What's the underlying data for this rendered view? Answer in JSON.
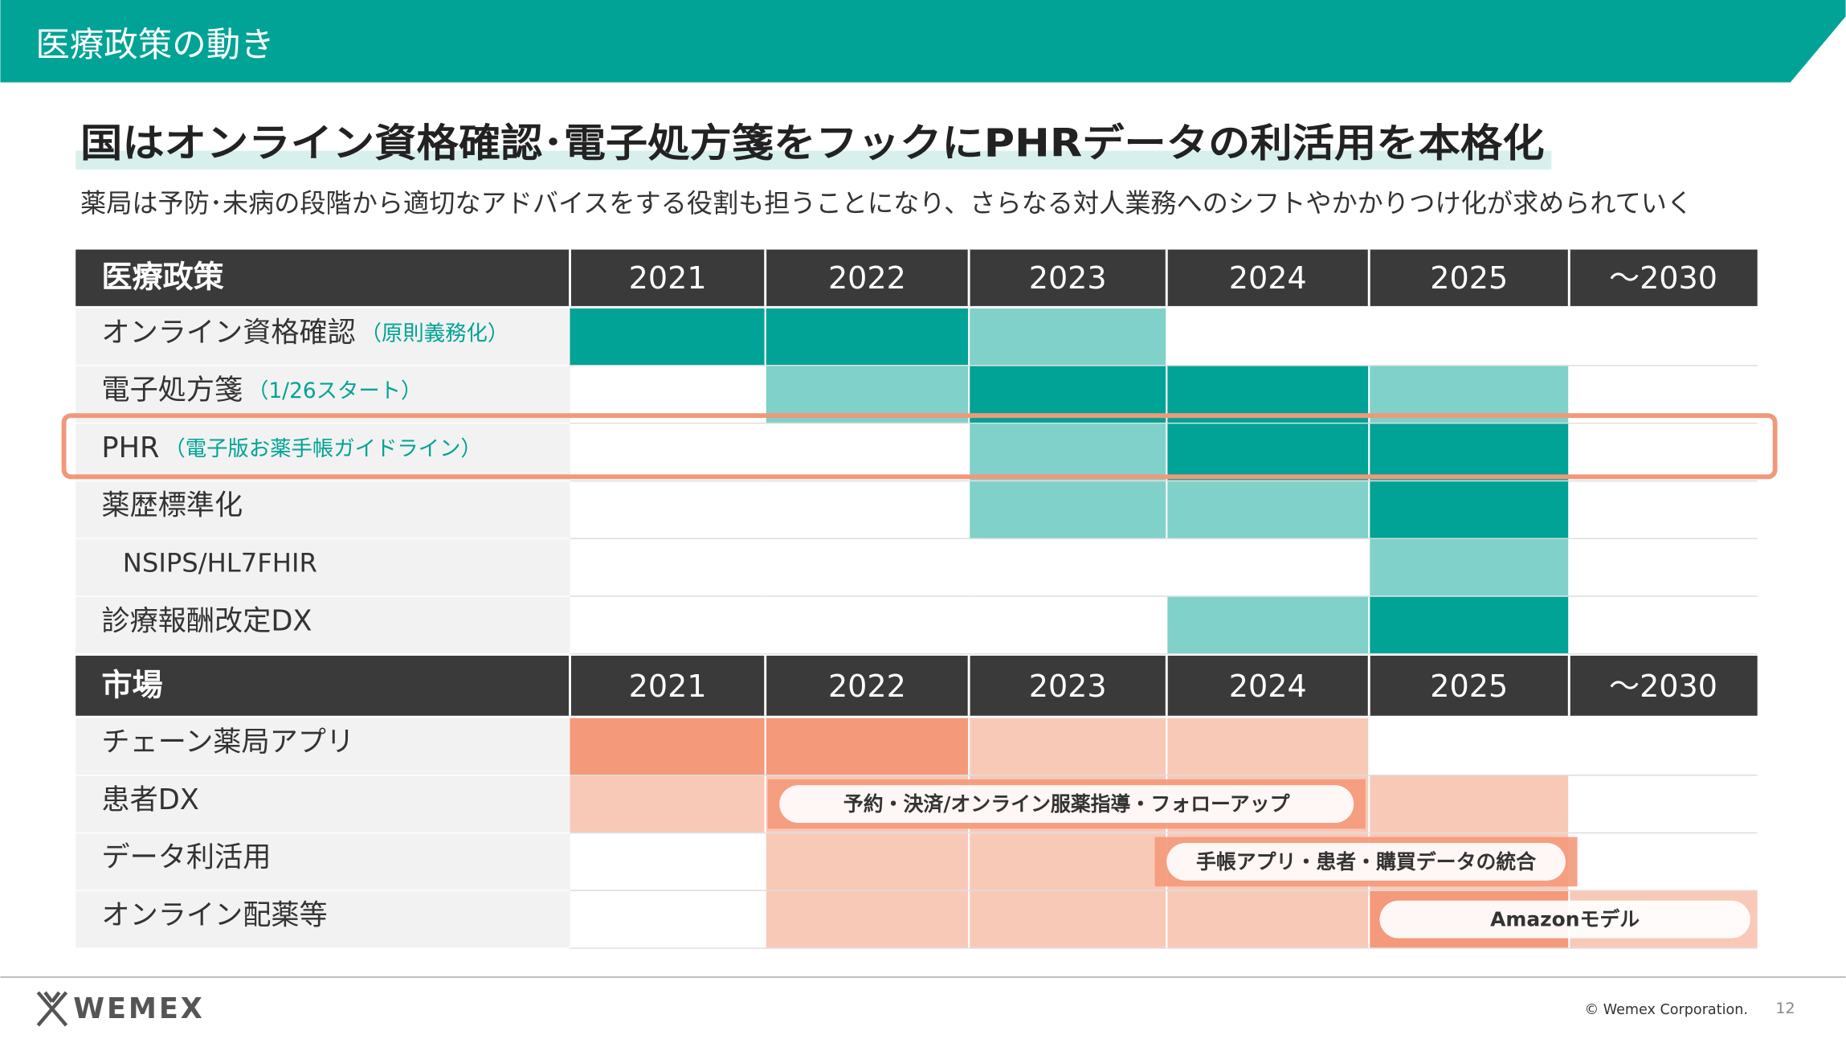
{
  "header": {
    "title": "医療政策の動き"
  },
  "headline": "国はオンライン資格確認･電子処方箋をフックにPHRデータの利活用を本格化",
  "subheadline": "薬局は予防･未病の段階から適切なアドバイスをする役割も担うことになり、さらなる対人業務へのシフトやかかりつけ化が求められていく",
  "policy_table": {
    "header": "医療政策",
    "years": [
      "2021",
      "2022",
      "2023",
      "2024",
      "2025",
      "～2030"
    ],
    "rows": [
      {
        "label": "オンライン資格確認",
        "note": "（原則義務化）"
      },
      {
        "label": "電子処方箋",
        "note": "（1/26スタート）"
      },
      {
        "label": "PHR",
        "note": "（電子版お薬手帳ガイドライン）"
      },
      {
        "label": "薬歴標準化"
      },
      {
        "label": "NSIPS/HL7FHIR"
      },
      {
        "label": "診療報酬改定DX"
      }
    ]
  },
  "market_table": {
    "header": "市場",
    "years": [
      "2021",
      "2022",
      "2023",
      "2024",
      "2025",
      "～2030"
    ],
    "rows": [
      {
        "label": "チェーン薬局アプリ"
      },
      {
        "label": "患者DX",
        "bar": "予約・決済/オンライン服薬指導・フォローアップ"
      },
      {
        "label": "データ利活用",
        "bar": "手帳アプリ・患者・購買データの統合"
      },
      {
        "label": "オンライン配薬等",
        "bar": "Amazonモデル"
      }
    ]
  },
  "footer": {
    "logo": "WEMEX",
    "copyright": "© Wemex Corporation.",
    "page": "12"
  }
}
